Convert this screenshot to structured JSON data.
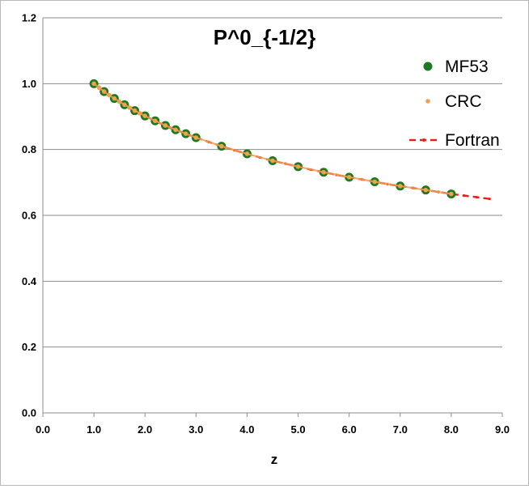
{
  "chart_data": {
    "type": "scatter",
    "title": "P^0_{-1/2}",
    "xlabel": "z",
    "ylabel": "",
    "xlim": [
      0.0,
      9.0
    ],
    "ylim": [
      0.0,
      1.2
    ],
    "x_ticks": [
      "0.0",
      "1.0",
      "2.0",
      "3.0",
      "4.0",
      "5.0",
      "6.0",
      "7.0",
      "8.0",
      "9.0"
    ],
    "y_ticks": [
      "0.0",
      "0.2",
      "0.4",
      "0.6",
      "0.8",
      "1.0",
      "1.2"
    ],
    "grid": "horizontal",
    "legend_position": "right",
    "series": [
      {
        "name": "MF53",
        "style": "marker",
        "color": "#1f7a1f",
        "x": [
          1.0,
          1.2,
          1.4,
          1.6,
          1.8,
          2.0,
          2.2,
          2.4,
          2.6,
          2.8,
          3.0,
          3.5,
          4.0,
          4.5,
          5.0,
          5.5,
          6.0,
          6.5,
          7.0,
          7.5,
          8.0
        ],
        "y": [
          1.0,
          0.976,
          0.955,
          0.936,
          0.918,
          0.902,
          0.887,
          0.873,
          0.86,
          0.848,
          0.836,
          0.81,
          0.787,
          0.766,
          0.748,
          0.731,
          0.716,
          0.702,
          0.689,
          0.677,
          0.665
        ]
      },
      {
        "name": "CRC",
        "style": "marker",
        "color": "#f0a050",
        "x": [
          1.0,
          1.1,
          1.2,
          1.3,
          1.4,
          1.5,
          1.6,
          1.7,
          1.8,
          1.9,
          2.0,
          2.2,
          2.4,
          2.6,
          2.8,
          3.0,
          3.5,
          4.0,
          4.5,
          5.0,
          5.5,
          6.0,
          6.5,
          7.0,
          7.5,
          8.0
        ],
        "y": [
          1.0,
          0.988,
          0.976,
          0.965,
          0.955,
          0.945,
          0.936,
          0.927,
          0.918,
          0.91,
          0.902,
          0.887,
          0.873,
          0.86,
          0.848,
          0.836,
          0.81,
          0.787,
          0.766,
          0.748,
          0.731,
          0.716,
          0.702,
          0.689,
          0.677,
          0.665
        ]
      },
      {
        "name": "Fortran",
        "style": "dashed-line",
        "color": "#e8201a",
        "x": [
          1.0,
          1.25,
          1.5,
          1.75,
          2.0,
          2.25,
          2.5,
          2.75,
          3.0,
          3.25,
          3.5,
          3.75,
          4.0,
          4.25,
          4.5,
          4.75,
          5.0,
          5.25,
          5.5,
          5.75,
          6.0,
          6.25,
          6.5,
          6.75,
          7.0,
          7.25,
          7.5,
          7.75,
          8.0,
          8.25,
          8.5,
          8.75
        ],
        "y": [
          1.0,
          0.971,
          0.945,
          0.922,
          0.902,
          0.883,
          0.866,
          0.851,
          0.836,
          0.823,
          0.81,
          0.798,
          0.787,
          0.776,
          0.766,
          0.757,
          0.748,
          0.739,
          0.731,
          0.723,
          0.716,
          0.709,
          0.702,
          0.695,
          0.689,
          0.683,
          0.677,
          0.671,
          0.665,
          0.66,
          0.655,
          0.65
        ]
      }
    ]
  }
}
